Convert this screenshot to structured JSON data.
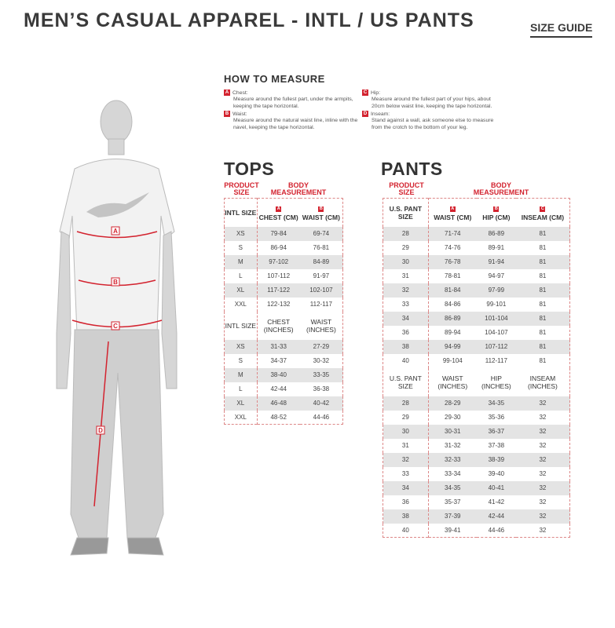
{
  "header": {
    "title": "MEN’S CASUAL APPAREL - INTL / US PANTS",
    "size_guide": "SIZE GUIDE"
  },
  "figure": {
    "markers": [
      "A",
      "B",
      "C",
      "D"
    ]
  },
  "how_to_measure": {
    "heading": "HOW TO MEASURE",
    "items": [
      {
        "letter": "A",
        "label": "Chest:",
        "text": "Measure around the fullest part, under the armpits, keeping the tape horizontal."
      },
      {
        "letter": "B",
        "label": "Waist:",
        "text": "Measure around the natural waist line, inline with the navel, keeping the tape horizontal."
      },
      {
        "letter": "C",
        "label": "Hip:",
        "text": "Measure around the fullest part of your hips, about 20cm below waist line, keeping the tape horizontal."
      },
      {
        "letter": "D",
        "label": "Inseam:",
        "text": "Stand against a wall, ask someone else to measure from the crotch to the bottom of your leg."
      }
    ]
  },
  "tops": {
    "heading": "TOPS",
    "product_size": "PRODUCT SIZE",
    "body_measurement": "BODY MEASUREMENT",
    "letters": [
      "A",
      "B"
    ],
    "cm_headers": [
      "INTL SIZE",
      "CHEST (CM)",
      "WAIST (CM)"
    ],
    "cm_rows": [
      [
        "XS",
        "79-84",
        "69-74"
      ],
      [
        "S",
        "86-94",
        "76-81"
      ],
      [
        "M",
        "97-102",
        "84-89"
      ],
      [
        "L",
        "107-112",
        "91-97"
      ],
      [
        "XL",
        "117-122",
        "102-107"
      ],
      [
        "XXL",
        "122-132",
        "112-117"
      ]
    ],
    "in_headers": [
      "INTL SIZE",
      "CHEST (INCHES)",
      "WAIST (INCHES)"
    ],
    "in_rows": [
      [
        "XS",
        "31-33",
        "27-29"
      ],
      [
        "S",
        "34-37",
        "30-32"
      ],
      [
        "M",
        "38-40",
        "33-35"
      ],
      [
        "L",
        "42-44",
        "36-38"
      ],
      [
        "XL",
        "46-48",
        "40-42"
      ],
      [
        "XXL",
        "48-52",
        "44-46"
      ]
    ]
  },
  "pants": {
    "heading": "PANTS",
    "product_size": "PRODUCT SIZE",
    "body_measurement": "BODY MEASUREMENT",
    "letters": [
      "A",
      "B",
      "C"
    ],
    "cm_headers": [
      "U.S. PANT SIZE",
      "WAIST (CM)",
      "HIP (CM)",
      "INSEAM (CM)"
    ],
    "cm_rows": [
      [
        "28",
        "71-74",
        "86-89",
        "81"
      ],
      [
        "29",
        "74-76",
        "89-91",
        "81"
      ],
      [
        "30",
        "76-78",
        "91-94",
        "81"
      ],
      [
        "31",
        "78-81",
        "94-97",
        "81"
      ],
      [
        "32",
        "81-84",
        "97-99",
        "81"
      ],
      [
        "33",
        "84-86",
        "99-101",
        "81"
      ],
      [
        "34",
        "86-89",
        "101-104",
        "81"
      ],
      [
        "36",
        "89-94",
        "104-107",
        "81"
      ],
      [
        "38",
        "94-99",
        "107-112",
        "81"
      ],
      [
        "40",
        "99-104",
        "112-117",
        "81"
      ]
    ],
    "in_headers": [
      "U.S. PANT SIZE",
      "WAIST (INCHES)",
      "HIP (INCHES)",
      "INSEAM (INCHES)"
    ],
    "in_rows": [
      [
        "28",
        "28-29",
        "34-35",
        "32"
      ],
      [
        "29",
        "29-30",
        "35-36",
        "32"
      ],
      [
        "30",
        "30-31",
        "36-37",
        "32"
      ],
      [
        "31",
        "31-32",
        "37-38",
        "32"
      ],
      [
        "32",
        "32-33",
        "38-39",
        "32"
      ],
      [
        "33",
        "33-34",
        "39-40",
        "32"
      ],
      [
        "34",
        "34-35",
        "40-41",
        "32"
      ],
      [
        "36",
        "35-37",
        "41-42",
        "32"
      ],
      [
        "38",
        "37-39",
        "42-44",
        "32"
      ],
      [
        "40",
        "39-41",
        "44-46",
        "32"
      ]
    ]
  },
  "colors": {
    "accent": "#d3232f",
    "stripe": "#e4e4e4",
    "text": "#333333"
  }
}
